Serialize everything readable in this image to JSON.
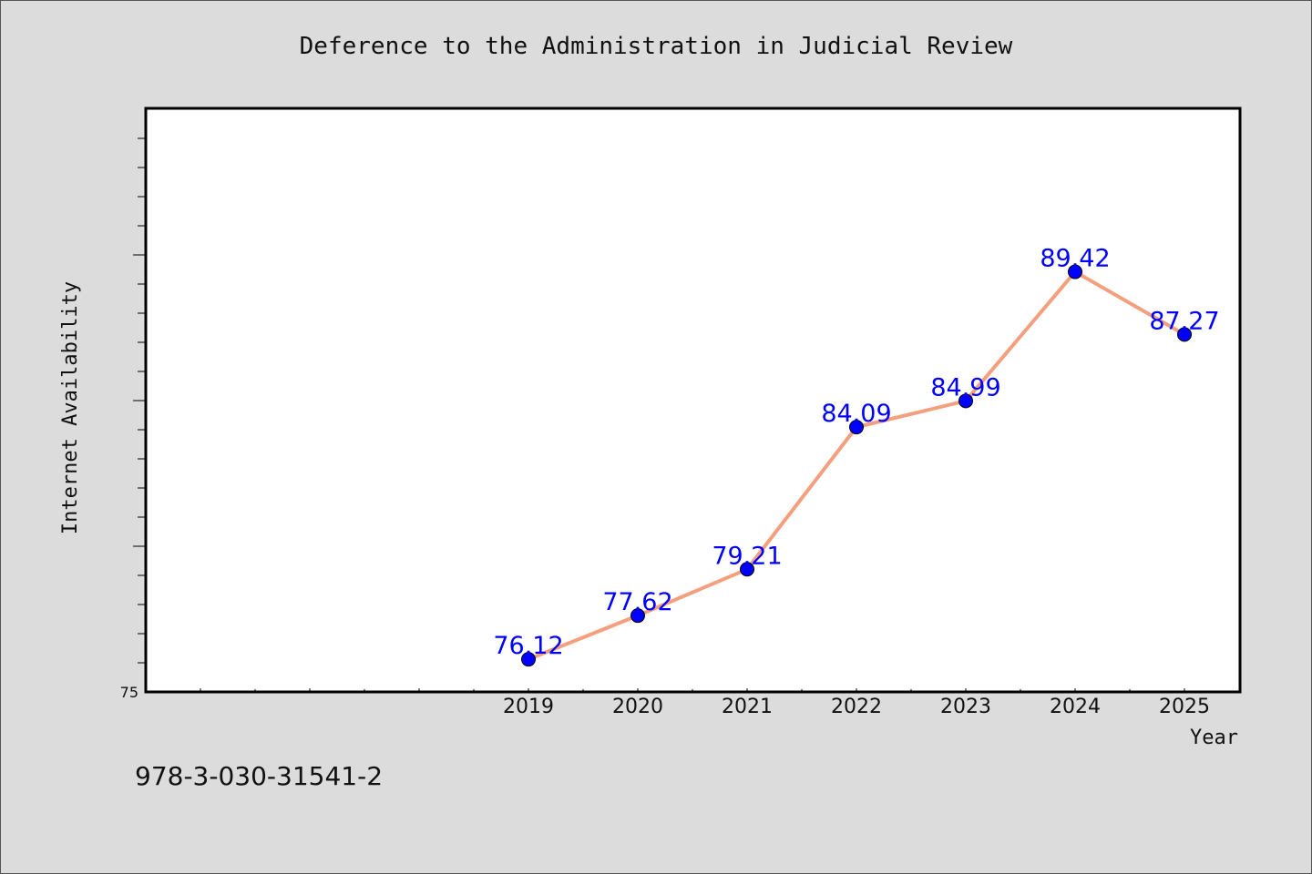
{
  "chart_data": {
    "type": "line",
    "title": "Deference to the Administration in Judicial Review",
    "xlabel": "Year",
    "ylabel": "Internet Availability",
    "categories": [
      "2019",
      "2020",
      "2021",
      "2022",
      "2023",
      "2024",
      "2025"
    ],
    "x": [
      2019,
      2020,
      2021,
      2022,
      2023,
      2024,
      2025
    ],
    "values": [
      76.12,
      77.62,
      79.21,
      84.09,
      84.99,
      89.42,
      87.27
    ],
    "data_labels": [
      "76.12",
      "77.62",
      "79.21",
      "84.09",
      "84.99",
      "89.42",
      "87.27"
    ],
    "xlim": [
      2015.5,
      2025.5
    ],
    "ylim": [
      75,
      95
    ],
    "yticks_labeled": [
      "75"
    ],
    "grid": false,
    "legend": "none",
    "line_color": "#f4a07e",
    "marker_color": "#0000ff",
    "label_color": "#0000ff",
    "background_color": "#dcdcdc",
    "plot_background_color": "#ffffff"
  },
  "footer": {
    "isbn": "978-3-030-31541-2"
  }
}
